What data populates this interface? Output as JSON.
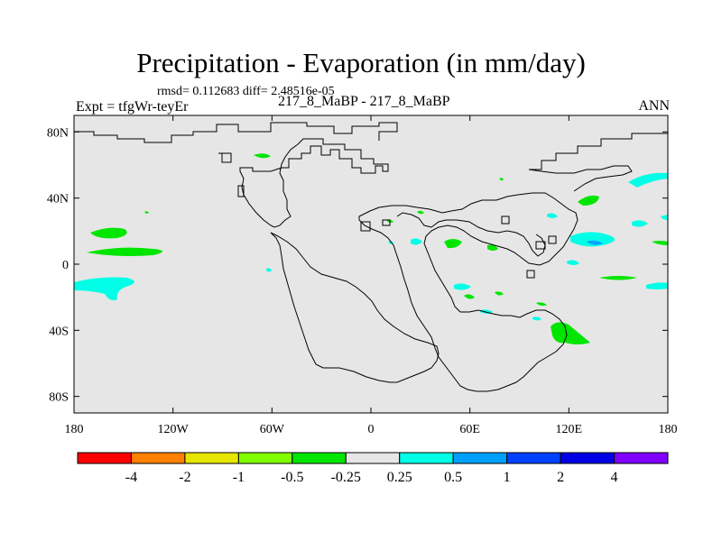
{
  "title": "Precipitation - Evaporation (in mm/day)",
  "stats": "rmsd= 0.112683  diff= 2.48516e-05",
  "experiment": "Expt = tfgWr-teyEr",
  "case_label": "217_8_MaBP - 217_8_MaBP",
  "season": "ANN",
  "map": {
    "lon_range": [
      -180,
      180
    ],
    "lat_range": [
      -90,
      90
    ],
    "background_color": "#e6e6e6",
    "lat_ticks": [
      {
        "value": 80,
        "label": "80N"
      },
      {
        "value": 40,
        "label": "40N"
      },
      {
        "value": 0,
        "label": "0"
      },
      {
        "value": -40,
        "label": "40S"
      },
      {
        "value": -80,
        "label": "80S"
      }
    ],
    "lon_ticks": [
      {
        "value": -180,
        "label": "180"
      },
      {
        "value": -120,
        "label": "120W"
      },
      {
        "value": -60,
        "label": "60W"
      },
      {
        "value": 0,
        "label": "0"
      },
      {
        "value": 60,
        "label": "60E"
      },
      {
        "value": 120,
        "label": "120E"
      },
      {
        "value": 180,
        "label": "180"
      }
    ]
  },
  "colorbar": {
    "colors": [
      "#ff0000",
      "#ff8000",
      "#e6e600",
      "#80ff00",
      "#00e600",
      "#e6e6e6",
      "#00ffe6",
      "#00a0ff",
      "#0040ff",
      "#0000e6",
      "#8000ff"
    ],
    "labels": [
      "-4",
      "-2",
      "-1",
      "-0.5",
      "-0.25",
      "0.25",
      "0.5",
      "1",
      "2",
      "4"
    ]
  }
}
